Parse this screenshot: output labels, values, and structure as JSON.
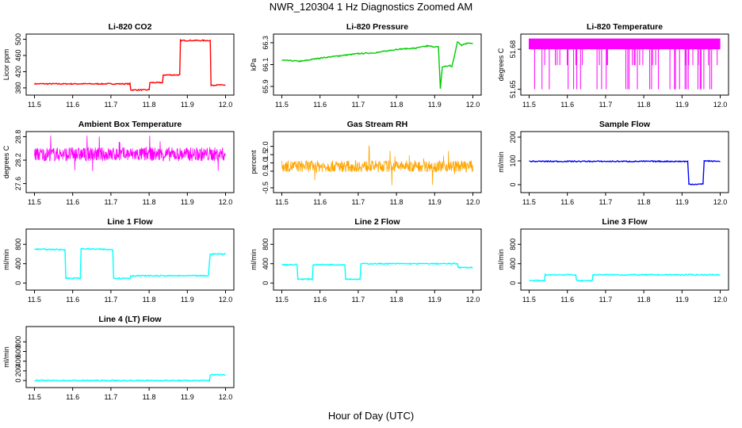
{
  "page": {
    "title": "NWR_120304  1 Hz Diagnostics Zoomed AM",
    "xlabel": "Hour of Day (UTC)"
  },
  "chart_data": [
    {
      "type": "line",
      "title": "Li-820 CO2",
      "ylabel": "Licor ppm",
      "xlim": [
        11.5,
        12.0
      ],
      "ylim": [
        370,
        505
      ],
      "xticks": [
        "11.5",
        "11.6",
        "11.7",
        "11.8",
        "11.9",
        "12.0"
      ],
      "yticks": [
        "380",
        "420",
        "460",
        "500"
      ],
      "color": "#ff0000",
      "series": [
        {
          "x": [
            11.5,
            11.75,
            11.752,
            11.8,
            11.802,
            11.835,
            11.837,
            11.88,
            11.882,
            11.96,
            11.962,
            12.0
          ],
          "y": [
            390,
            390,
            375,
            375,
            393,
            393,
            412,
            412,
            497,
            497,
            387,
            387
          ]
        }
      ]
    },
    {
      "type": "line",
      "title": "Li-820 Pressure",
      "ylabel": "kPa",
      "xlim": [
        11.5,
        12.0
      ],
      "ylim": [
        65.85,
        66.35
      ],
      "xticks": [
        "11.5",
        "11.6",
        "11.7",
        "11.8",
        "11.9",
        "12.0"
      ],
      "yticks": [
        "65.9",
        "66.1",
        "66.3"
      ],
      "color": "#00cc00",
      "series": [
        {
          "x": [
            11.5,
            11.55,
            11.6,
            11.65,
            11.7,
            11.75,
            11.8,
            11.85,
            11.88,
            11.91,
            11.915,
            11.92,
            11.94,
            11.945,
            11.96,
            11.97,
            11.99,
            12.0
          ],
          "y": [
            66.14,
            66.13,
            66.16,
            66.18,
            66.2,
            66.21,
            66.24,
            66.25,
            66.27,
            66.26,
            65.88,
            66.08,
            66.09,
            66.08,
            66.31,
            66.28,
            66.3,
            66.29
          ]
        }
      ]
    },
    {
      "type": "line",
      "title": "Li-820 Temperature",
      "ylabel": "degrees C",
      "xlim": [
        11.5,
        12.0
      ],
      "ylim": [
        51.648,
        51.689
      ],
      "xticks": [
        "11.5",
        "11.6",
        "11.7",
        "11.8",
        "11.9",
        "12.0"
      ],
      "yticks": [
        "51.65",
        "51.68"
      ],
      "color": "#ff00ff",
      "series": [
        {
          "x": [
            11.5,
            12.0
          ],
          "y": [
            51.68,
            51.68
          ]
        }
      ]
    },
    {
      "type": "line",
      "title": "Ambient Box Temperature",
      "ylabel": "degrees C",
      "xlim": [
        11.5,
        12.0
      ],
      "ylim": [
        27.45,
        28.85
      ],
      "xticks": [
        "11.5",
        "11.6",
        "11.7",
        "11.8",
        "11.9",
        "12.0"
      ],
      "yticks": [
        "27.6",
        "28.2",
        "28.8"
      ],
      "color": "#ff00ff",
      "series": [
        {
          "x": [
            11.5,
            12.0
          ],
          "y": [
            28.35,
            28.35
          ]
        }
      ]
    },
    {
      "type": "line",
      "title": "Gas Stream RH",
      "ylabel": "percent",
      "xlim": [
        11.5,
        12.0
      ],
      "ylim": [
        -0.6,
        2.7
      ],
      "xticks": [
        "11.5",
        "11.6",
        "11.7",
        "11.8",
        "11.9",
        "12.0"
      ],
      "yticks": [
        "-0.5",
        "0.5",
        "1.0",
        "1.5",
        "2.0"
      ],
      "color": "#ffa500",
      "series": [
        {
          "x": [
            11.5,
            12.0
          ],
          "y": [
            0.8,
            0.8
          ]
        }
      ]
    },
    {
      "type": "line",
      "title": "Sample Flow",
      "ylabel": "ml/min",
      "xlim": [
        11.5,
        12.0
      ],
      "ylim": [
        -20,
        210
      ],
      "xticks": [
        "11.5",
        "11.6",
        "11.7",
        "11.8",
        "11.9",
        "12.0"
      ],
      "yticks": [
        "0",
        "100",
        "200"
      ],
      "color": "#0000ff",
      "series": [
        {
          "x": [
            11.5,
            11.915,
            11.918,
            11.955,
            11.958,
            12.0
          ],
          "y": [
            98,
            98,
            2,
            2,
            100,
            98
          ]
        }
      ]
    },
    {
      "type": "line",
      "title": "Line 1 Flow",
      "ylabel": "ml/min",
      "xlim": [
        11.5,
        12.0
      ],
      "ylim": [
        -80,
        1050
      ],
      "xticks": [
        "11.5",
        "11.6",
        "11.7",
        "11.8",
        "11.9",
        "12.0"
      ],
      "yticks": [
        "0",
        "400",
        "800"
      ],
      "color": "#00ffff",
      "series": [
        {
          "x": [
            11.5,
            11.58,
            11.582,
            11.62,
            11.622,
            11.705,
            11.707,
            11.75,
            11.752,
            11.955,
            11.96,
            12.0
          ],
          "y": [
            700,
            690,
            100,
            100,
            710,
            690,
            100,
            100,
            150,
            150,
            600,
            600
          ]
        }
      ]
    },
    {
      "type": "line",
      "title": "Line 2 Flow",
      "ylabel": "ml/min",
      "xlim": [
        11.5,
        12.0
      ],
      "ylim": [
        -80,
        1050
      ],
      "xticks": [
        "11.5",
        "11.6",
        "11.7",
        "11.8",
        "11.9",
        "12.0"
      ],
      "yticks": [
        "0",
        "400",
        "800"
      ],
      "color": "#00ffff",
      "series": [
        {
          "x": [
            11.5,
            11.54,
            11.542,
            11.58,
            11.582,
            11.665,
            11.667,
            11.705,
            11.707,
            11.96,
            11.962,
            12.0
          ],
          "y": [
            380,
            380,
            80,
            80,
            380,
            380,
            80,
            80,
            400,
            400,
            320,
            320
          ]
        }
      ]
    },
    {
      "type": "line",
      "title": "Line 3 Flow",
      "ylabel": "ml/min",
      "xlim": [
        11.5,
        12.0
      ],
      "ylim": [
        -80,
        1050
      ],
      "xticks": [
        "11.5",
        "11.6",
        "11.7",
        "11.8",
        "11.9",
        "12.0"
      ],
      "yticks": [
        "0",
        "400",
        "800"
      ],
      "color": "#00ffff",
      "series": [
        {
          "x": [
            11.5,
            11.54,
            11.542,
            11.622,
            11.624,
            11.665,
            11.667,
            12.0
          ],
          "y": [
            50,
            50,
            170,
            170,
            50,
            50,
            170,
            170
          ]
        }
      ]
    },
    {
      "type": "line",
      "title": "Line 4 (LT) Flow",
      "ylabel": "ml/min",
      "xlim": [
        11.5,
        12.0
      ],
      "ylim": [
        -80,
        1050
      ],
      "xticks": [
        "11.5",
        "11.6",
        "11.7",
        "11.8",
        "11.9",
        "12.0"
      ],
      "yticks": [
        "0",
        "200",
        "400",
        "600",
        "800"
      ],
      "color": "#00ffff",
      "series": [
        {
          "x": [
            11.5,
            11.958,
            11.96,
            12.0
          ],
          "y": [
            0,
            0,
            120,
            120
          ]
        }
      ]
    }
  ]
}
